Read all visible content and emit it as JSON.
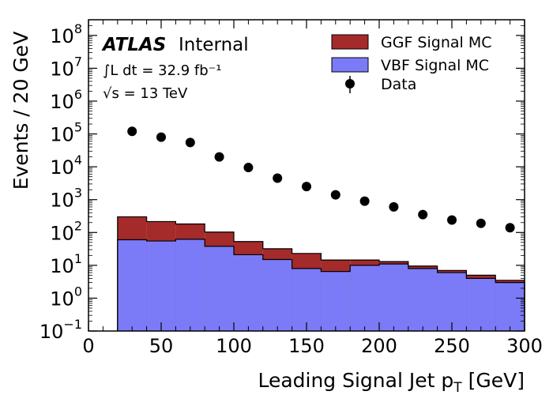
{
  "chart_data": {
    "type": "histogram",
    "y_scale": "log",
    "xlabel": "Leading Signal Jet p",
    "xlabel_sub": "T",
    "xlabel_unit": "[GeV]",
    "ylabel": "Events / 20 GeV",
    "xlim": [
      0,
      300
    ],
    "ylim": [
      0.1,
      300000000
    ],
    "x_ticks": [
      0,
      50,
      100,
      150,
      200,
      250,
      300
    ],
    "y_ticks": [
      {
        "value": 0.1,
        "base": "10",
        "exp": "−1"
      },
      {
        "value": 1,
        "base": "10",
        "exp": "0"
      },
      {
        "value": 10,
        "base": "10",
        "exp": "1"
      },
      {
        "value": 100,
        "base": "10",
        "exp": "2"
      },
      {
        "value": 1000,
        "base": "10",
        "exp": "3"
      },
      {
        "value": 10000,
        "base": "10",
        "exp": "4"
      },
      {
        "value": 100000,
        "base": "10",
        "exp": "5"
      },
      {
        "value": 1000000,
        "base": "10",
        "exp": "6"
      },
      {
        "value": 10000000,
        "base": "10",
        "exp": "7"
      },
      {
        "value": 100000000,
        "base": "10",
        "exp": "8"
      }
    ],
    "bin_edges": [
      20,
      40,
      60,
      80,
      100,
      120,
      140,
      160,
      180,
      200,
      220,
      240,
      260,
      280,
      300
    ],
    "series": [
      {
        "name": "VBF Signal MC",
        "kind": "stacked-fill",
        "color": "#7b7bf7",
        "values": [
          60,
          55,
          62,
          38,
          21,
          15,
          8,
          6.5,
          10,
          11,
          8,
          6,
          4,
          3
        ]
      },
      {
        "name": "GGF Signal MC",
        "kind": "stacked-fill",
        "color": "#a52a2a",
        "values": [
          240,
          160,
          120,
          65,
          32,
          17,
          15,
          8,
          4.5,
          2,
          1.5,
          1,
          1,
          0.5
        ]
      },
      {
        "name": "Data",
        "kind": "points",
        "color": "#000000",
        "x": [
          30,
          50,
          70,
          90,
          110,
          130,
          150,
          170,
          190,
          210,
          230,
          250,
          270,
          290
        ],
        "values": [
          120000,
          80000,
          55000,
          20000,
          9500,
          4500,
          2500,
          1400,
          900,
          600,
          350,
          240,
          190,
          140
        ]
      }
    ],
    "annotations": {
      "experiment": "ATLAS",
      "status": "Internal",
      "lumi": "∫L dt = 32.9 fb⁻¹",
      "energy": "√s = 13 TeV"
    },
    "legend_position": "top-right",
    "grid": false
  }
}
